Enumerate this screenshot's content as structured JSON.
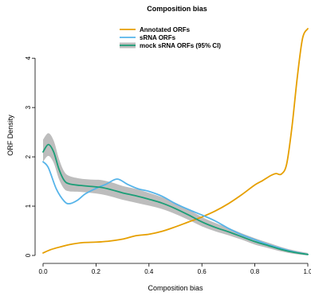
{
  "chart_data": {
    "type": "line",
    "title": "Composition bias",
    "xlabel": "Composition bias",
    "ylabel": "ORF Density",
    "xlim": [
      0,
      1.0
    ],
    "ylim": [
      0,
      4.6
    ],
    "xticks": [
      0.0,
      0.2,
      0.4,
      0.6,
      0.8,
      1.0
    ],
    "xtick_labels": [
      "0.0",
      "0.2",
      "0.4",
      "0.6",
      "0.8",
      "1.0"
    ],
    "yticks": [
      0,
      1,
      2,
      3,
      4
    ],
    "ytick_labels": [
      "0",
      "1",
      "2",
      "3",
      "4"
    ],
    "grid": false,
    "legend_position": "top-center",
    "series": [
      {
        "name": "Annotated ORFs",
        "kind": "line",
        "color": "#E69F00",
        "x": [
          0.0,
          0.03,
          0.07,
          0.1,
          0.15,
          0.2,
          0.25,
          0.3,
          0.35,
          0.4,
          0.45,
          0.5,
          0.55,
          0.6,
          0.65,
          0.7,
          0.75,
          0.8,
          0.83,
          0.86,
          0.88,
          0.9,
          0.92,
          0.94,
          0.96,
          0.98,
          1.0
        ],
        "y": [
          0.05,
          0.12,
          0.18,
          0.22,
          0.26,
          0.27,
          0.29,
          0.33,
          0.4,
          0.43,
          0.49,
          0.58,
          0.68,
          0.78,
          0.9,
          1.05,
          1.23,
          1.43,
          1.52,
          1.62,
          1.66,
          1.65,
          1.85,
          2.6,
          3.6,
          4.4,
          4.6
        ]
      },
      {
        "name": "sRNA ORFs",
        "kind": "line",
        "color": "#56B4E9",
        "x": [
          0.0,
          0.02,
          0.05,
          0.08,
          0.1,
          0.13,
          0.16,
          0.2,
          0.24,
          0.28,
          0.32,
          0.36,
          0.4,
          0.45,
          0.5,
          0.55,
          0.6,
          0.65,
          0.7,
          0.75,
          0.8,
          0.85,
          0.9,
          0.95,
          1.0
        ],
        "y": [
          1.9,
          1.78,
          1.35,
          1.1,
          1.05,
          1.12,
          1.25,
          1.36,
          1.45,
          1.55,
          1.44,
          1.35,
          1.3,
          1.2,
          1.05,
          0.93,
          0.82,
          0.7,
          0.55,
          0.42,
          0.32,
          0.22,
          0.14,
          0.07,
          0.02
        ]
      },
      {
        "name": "mock sRNA ORFs (95% CI)",
        "kind": "line-ci",
        "color": "#1B9E77",
        "band_color": "#BDBDBD",
        "x": [
          0.0,
          0.02,
          0.04,
          0.06,
          0.08,
          0.1,
          0.14,
          0.18,
          0.22,
          0.26,
          0.3,
          0.35,
          0.4,
          0.45,
          0.5,
          0.55,
          0.6,
          0.65,
          0.7,
          0.75,
          0.8,
          0.85,
          0.9,
          0.95,
          1.0
        ],
        "y": [
          2.1,
          2.25,
          2.1,
          1.75,
          1.52,
          1.45,
          1.42,
          1.4,
          1.38,
          1.33,
          1.27,
          1.21,
          1.14,
          1.06,
          0.95,
          0.82,
          0.68,
          0.57,
          0.48,
          0.38,
          0.28,
          0.2,
          0.12,
          0.06,
          0.02
        ],
        "lower": [
          1.9,
          2.02,
          1.88,
          1.55,
          1.35,
          1.3,
          1.29,
          1.27,
          1.24,
          1.19,
          1.13,
          1.07,
          1.01,
          0.94,
          0.84,
          0.72,
          0.59,
          0.49,
          0.41,
          0.32,
          0.22,
          0.15,
          0.08,
          0.03,
          0.0
        ],
        "upper": [
          2.35,
          2.48,
          2.33,
          1.96,
          1.7,
          1.61,
          1.56,
          1.54,
          1.53,
          1.48,
          1.41,
          1.35,
          1.27,
          1.18,
          1.07,
          0.93,
          0.78,
          0.66,
          0.56,
          0.45,
          0.35,
          0.26,
          0.17,
          0.1,
          0.05
        ]
      }
    ]
  }
}
